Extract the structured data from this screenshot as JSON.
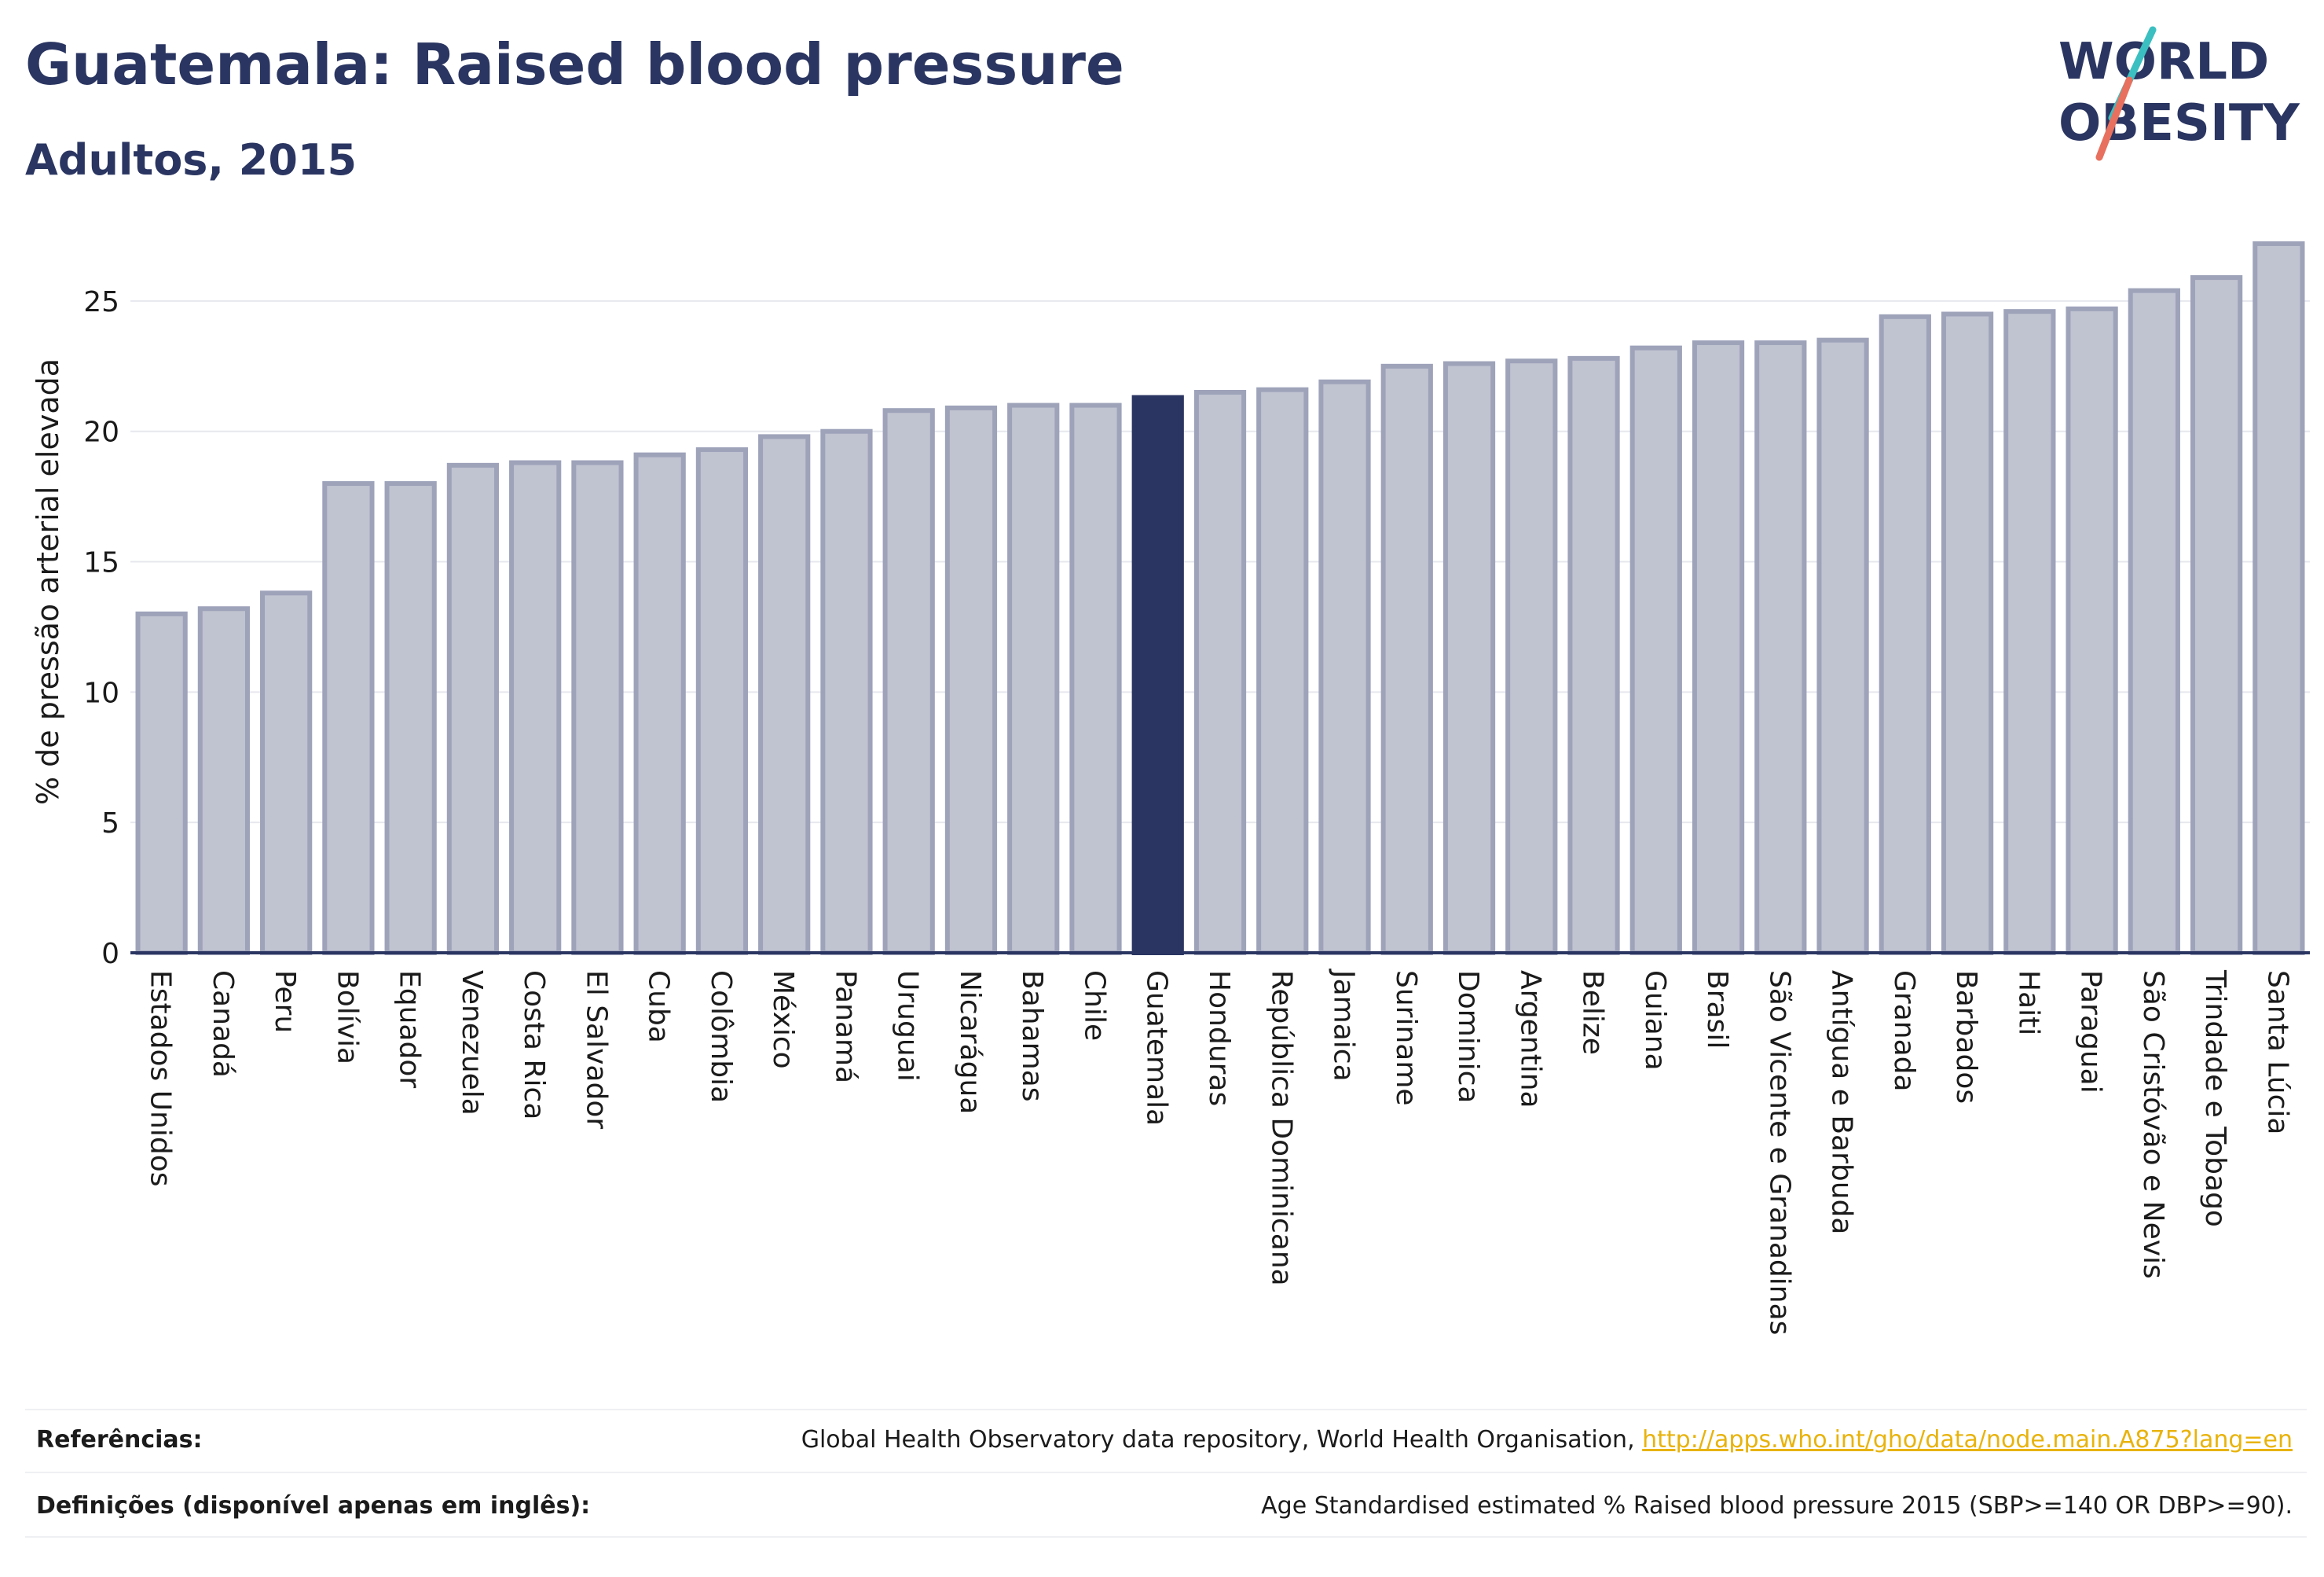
{
  "header": {
    "title": "Guatemala: Raised blood pressure",
    "subtitle": "Adultos, 2015"
  },
  "logo": {
    "line1": "WORLD",
    "line2": "OBESITY"
  },
  "chart_data": {
    "type": "bar",
    "ylabel": "% de pressão arterial elevada",
    "ylim": [
      0,
      27.5
    ],
    "yticks": [
      0,
      5,
      10,
      15,
      20,
      25
    ],
    "grid": true,
    "highlight": "Guatemala",
    "colors": {
      "bar": "#c0c3d0",
      "bar_border": "#9ea3ba",
      "highlight": "#2a3561",
      "grid": "#e6e8ee",
      "axis": "#2a3561"
    },
    "categories": [
      "Estados Unidos",
      "Canadá",
      "Peru",
      "Bolívia",
      "Equador",
      "Venezuela",
      "Costa Rica",
      "El Salvador",
      "Cuba",
      "Colômbia",
      "México",
      "Panamá",
      "Uruguai",
      "Nicarágua",
      "Bahamas",
      "Chile",
      "Guatemala",
      "Honduras",
      "República Dominicana",
      "Jamaica",
      "Suriname",
      "Dominica",
      "Argentina",
      "Belize",
      "Guiana",
      "Brasil",
      "São Vicente e Granadinas",
      "Antígua e Barbuda",
      "Granada",
      "Barbados",
      "Haiti",
      "Paraguai",
      "São Cristóvão e Nevis",
      "Trindade e Tobago",
      "Santa Lúcia"
    ],
    "values": [
      13.0,
      13.2,
      13.8,
      18.0,
      18.0,
      18.7,
      18.8,
      18.8,
      19.1,
      19.3,
      19.8,
      20.0,
      20.8,
      20.9,
      21.0,
      21.0,
      21.3,
      21.5,
      21.6,
      21.9,
      22.5,
      22.6,
      22.7,
      22.8,
      23.2,
      23.4,
      23.4,
      23.5,
      24.4,
      24.5,
      24.6,
      24.7,
      25.4,
      25.9,
      27.2
    ]
  },
  "footer": {
    "references_label": "Referências:",
    "references_text": "Global Health Observatory data repository, World Health Organisation, ",
    "references_link": "http://apps.who.int/gho/data/node.main.A875?lang=en",
    "definitions_label": "Definições (disponível apenas em inglês):",
    "definitions_text": "Age Standardised estimated % Raised blood pressure 2015 (SBP>=140 OR DBP>=90)."
  }
}
